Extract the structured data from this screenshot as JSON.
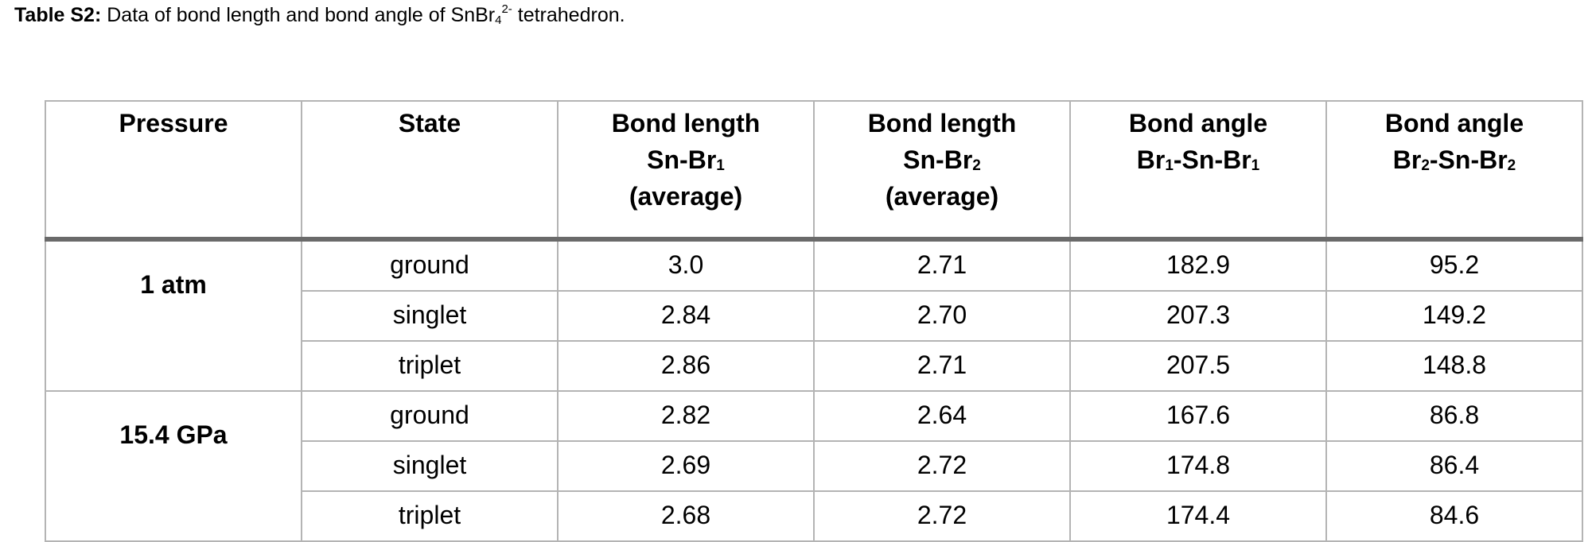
{
  "caption": {
    "label": "Table S2:",
    "text_before": " Data of bond length and bond angle of SnBr",
    "sub": "4",
    "sup": "2-",
    "text_after": " tetrahedron."
  },
  "table": {
    "headers": [
      {
        "lines": [
          {
            "text": "Pressure"
          }
        ]
      },
      {
        "lines": [
          {
            "text": "State"
          }
        ]
      },
      {
        "lines": [
          {
            "text": "Bond length"
          },
          {
            "text": "Sn-Br",
            "sub": "1"
          },
          {
            "text": "(average)"
          }
        ]
      },
      {
        "lines": [
          {
            "text": "Bond length"
          },
          {
            "text": "Sn-Br",
            "sub": "2"
          },
          {
            "text": "(average)"
          }
        ]
      },
      {
        "lines": [
          {
            "text": "Bond angle"
          },
          {
            "text": "Br",
            "sub": "1",
            "text2": "-Sn-Br",
            "sub2": "1"
          }
        ]
      },
      {
        "lines": [
          {
            "text": "Bond angle"
          },
          {
            "text": "Br",
            "sub": "2",
            "text2": "-Sn-Br",
            "sub2": "2"
          }
        ]
      }
    ],
    "groups": [
      {
        "pressure": "1 atm",
        "rows": [
          {
            "state": "ground",
            "values": [
              "3.0",
              "2.71",
              "182.9",
              "95.2"
            ]
          },
          {
            "state": "singlet",
            "values": [
              "2.84",
              "2.70",
              "207.3",
              "149.2"
            ]
          },
          {
            "state": "triplet",
            "values": [
              "2.86",
              "2.71",
              "207.5",
              "148.8"
            ]
          }
        ]
      },
      {
        "pressure": "15.4 GPa",
        "rows": [
          {
            "state": "ground",
            "values": [
              "2.82",
              "2.64",
              "167.6",
              "86.8"
            ]
          },
          {
            "state": "singlet",
            "values": [
              "2.69",
              "2.72",
              "174.8",
              "86.4"
            ]
          },
          {
            "state": "triplet",
            "values": [
              "2.68",
              "2.72",
              "174.4",
              "84.6"
            ]
          }
        ]
      }
    ]
  }
}
